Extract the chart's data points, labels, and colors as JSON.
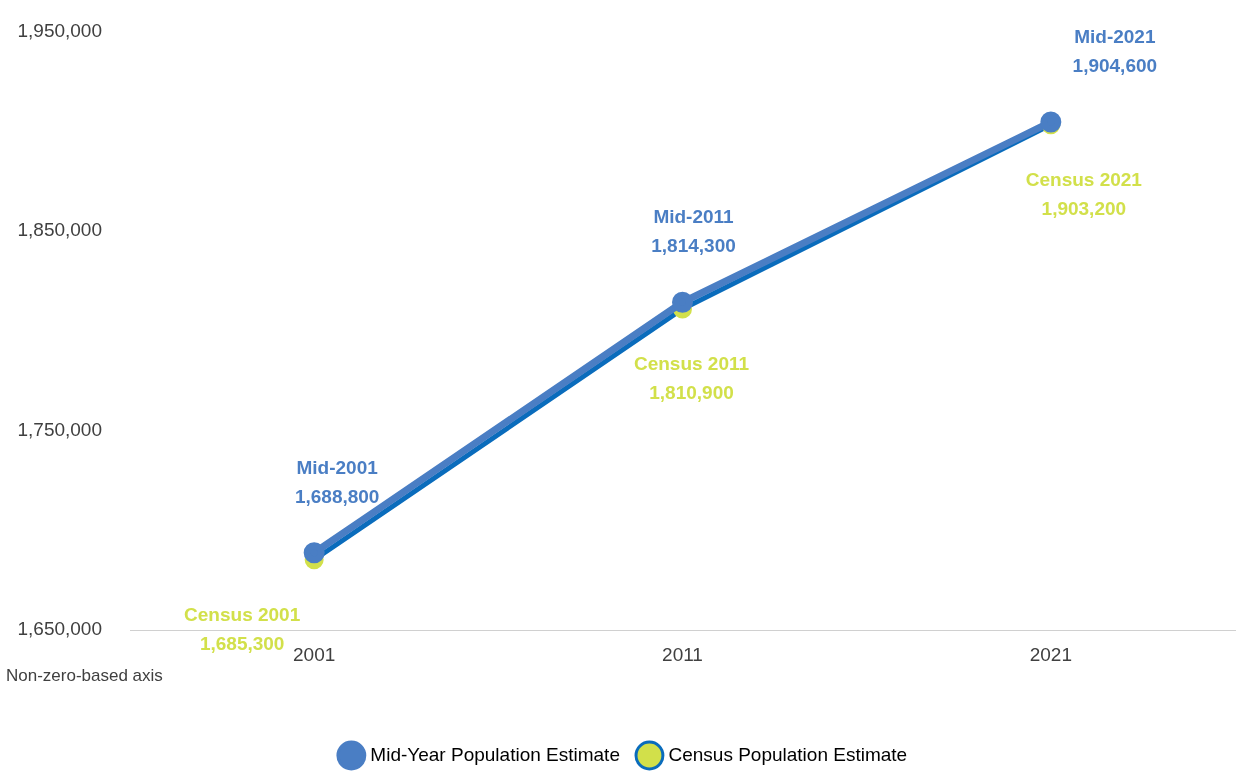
{
  "chart_data": {
    "type": "line",
    "categories": [
      "2001",
      "2011",
      "2021"
    ],
    "series": [
      {
        "name": "Mid-Year Population Estimate",
        "color": "#4a7ec4",
        "values": [
          1688800,
          1814300,
          1904600
        ],
        "value_labels": [
          "Mid-2001\n1,688,800",
          "Mid-2011\n1,814,300",
          "Mid-2021\n1,904,600"
        ]
      },
      {
        "name": "Census Population Estimate",
        "color": "#0a6cbc",
        "colors": [
          "#d2e04a",
          "#d2e04a",
          "#d2e04a"
        ],
        "values": [
          1685300,
          1810900,
          1903200
        ],
        "value_labels": [
          "Census 2001\n1,685,300",
          "Census 2011\n1,810,900",
          "Census 2021\n1,903,200"
        ]
      }
    ],
    "ylim": [
      1650000,
      1950000
    ],
    "yticks": [
      {
        "value": 1650000,
        "label": "1,650,000"
      },
      {
        "value": 1750000,
        "label": "1,750,000"
      },
      {
        "value": 1850000,
        "label": "1,850,000"
      },
      {
        "value": 1950000,
        "label": "1,950,000"
      }
    ],
    "grid": false,
    "legend": "bottom",
    "marker": "circle",
    "line_style": "solid",
    "annotations": [
      "Non-zero-based axis"
    ]
  }
}
